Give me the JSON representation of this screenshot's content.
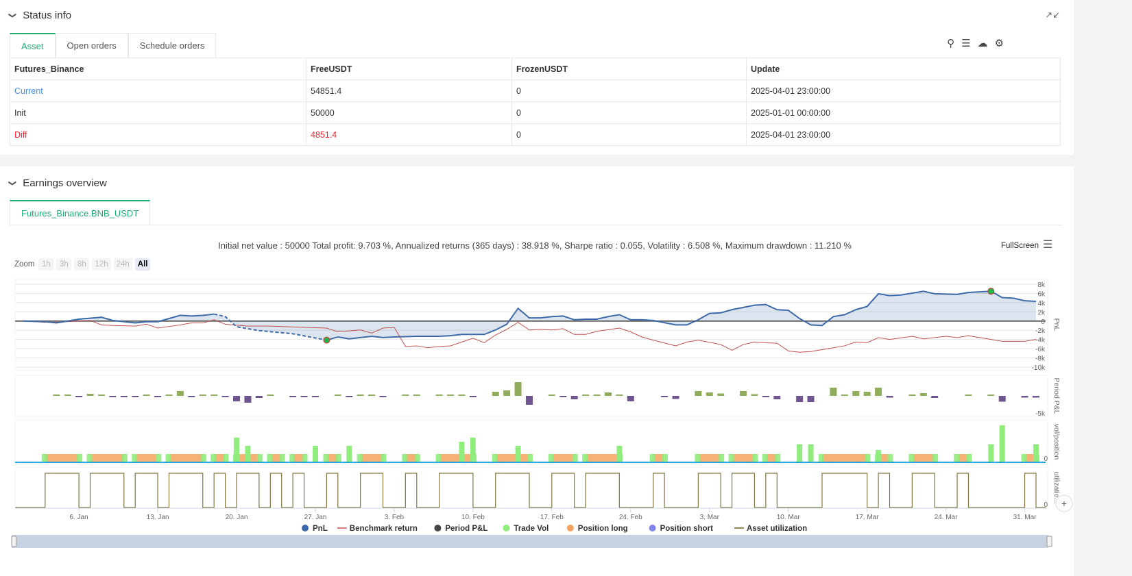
{
  "status": {
    "title": "Status info",
    "tabs": [
      "Asset",
      "Open orders",
      "Schedule orders"
    ],
    "columns": [
      "Futures_Binance",
      "FreeUSDT",
      "FrozenUSDT",
      "Update"
    ],
    "rows": [
      [
        "Current",
        "54851.4",
        "0",
        "2025-04-01 23:00:00"
      ],
      [
        "Init",
        "50000",
        "0",
        "2025-01-01 00:00:00"
      ],
      [
        "Diff",
        "4851.4",
        "0",
        "2025-04-01 23:00:00"
      ]
    ],
    "icons": [
      "search-icon",
      "list-icon",
      "cloud-download-icon",
      "gear-icon"
    ]
  },
  "earnings": {
    "title": "Earnings overview",
    "tab": "Futures_Binance.BNB_USDT",
    "summary": "Initial net value : 50000 Total profit: 9.703 %, Annualized returns (365 days) : 38.918 %, Sharpe ratio : 0.055, Volatility : 6.508 %, Maximum drawdown : 11.210 %",
    "fullscreen": "FullScreen",
    "zoom_label": "Zoom",
    "zoom_buttons": [
      "1h",
      "3h",
      "8h",
      "12h",
      "24h",
      "All"
    ],
    "zoom_selected": "All"
  },
  "colors": {
    "accent": "#1aae6f",
    "pnl": "#3d6aa8",
    "benchmark": "#c0504d",
    "profit": "#8fad5a",
    "loss": "#6f5590",
    "vol": "#90ed7d",
    "long": "#f7a35c",
    "short": "#8085e9",
    "util": "#6b5d1e",
    "diff": "#f5222d",
    "link": "#4a90e2"
  },
  "chart_data": {
    "type": "line",
    "x_range": [
      "2025-01-01",
      "2025-04-01"
    ],
    "x_ticks": [
      "6. Jan",
      "13. Jan",
      "20. Jan",
      "27. Jan",
      "3. Feb",
      "10. Feb",
      "17. Feb",
      "24. Feb",
      "3. Mar",
      "10. Mar",
      "17. Mar",
      "24. Mar",
      "31. Mar"
    ],
    "x_tick_dates": [
      "2025-01-06",
      "2025-01-13",
      "2025-01-20",
      "2025-01-27",
      "2025-02-03",
      "2025-02-10",
      "2025-02-17",
      "2025-02-24",
      "2025-03-03",
      "2025-03-10",
      "2025-03-17",
      "2025-03-24",
      "2025-03-31"
    ],
    "panes": [
      {
        "title": "PnL",
        "ylim": [
          -10000,
          8000
        ],
        "ticks": [
          8000,
          6000,
          4000,
          2000,
          0,
          -2000,
          -4000,
          -6000,
          -8000,
          -10000
        ],
        "tick_labels": [
          "8k",
          "6k",
          "4k",
          "2k",
          "0",
          "-2k",
          "-4k",
          "-6k",
          "-8k",
          "-10k"
        ]
      },
      {
        "title": "Period P&L",
        "tick_labels": [
          "-5k"
        ]
      },
      {
        "title": "vol/position",
        "tick_labels": [
          "0"
        ]
      },
      {
        "title": "utilizatio...",
        "tick_labels": [
          "0"
        ]
      }
    ],
    "pnl": [
      [
        "2025-01-01",
        0
      ],
      [
        "2025-01-03",
        -140
      ],
      [
        "2025-01-04",
        -410
      ],
      [
        "2025-01-05",
        0
      ],
      [
        "2025-01-06",
        410
      ],
      [
        "2025-01-08",
        830
      ],
      [
        "2025-01-09",
        140
      ],
      [
        "2025-01-11",
        -410
      ],
      [
        "2025-01-12",
        -140
      ],
      [
        "2025-01-13",
        -140
      ],
      [
        "2025-01-15",
        1240
      ],
      [
        "2025-01-16",
        1100
      ],
      [
        "2025-01-17",
        1240
      ],
      [
        "2025-01-18",
        1520
      ],
      [
        "2025-01-19",
        970
      ],
      [
        "2025-01-20",
        -1240
      ],
      [
        "2025-01-22",
        -2070
      ],
      [
        "2025-01-25",
        -2760
      ],
      [
        "2025-01-28",
        -4140
      ],
      [
        "2025-01-29",
        -3450
      ],
      [
        "2025-01-30",
        -3860
      ],
      [
        "2025-02-01",
        -3310
      ],
      [
        "2025-02-02",
        -3590
      ],
      [
        "2025-02-03",
        -3450
      ],
      [
        "2025-02-05",
        -3310
      ],
      [
        "2025-02-07",
        -3310
      ],
      [
        "2025-02-08",
        -3170
      ],
      [
        "2025-02-09",
        -2900
      ],
      [
        "2025-02-11",
        -2900
      ],
      [
        "2025-02-12",
        -1930
      ],
      [
        "2025-02-13",
        -690
      ],
      [
        "2025-02-14",
        2760
      ],
      [
        "2025-02-15",
        690
      ],
      [
        "2025-02-16",
        690
      ],
      [
        "2025-02-17",
        970
      ],
      [
        "2025-02-18",
        1100
      ],
      [
        "2025-02-19",
        280
      ],
      [
        "2025-02-20",
        410
      ],
      [
        "2025-02-21",
        410
      ],
      [
        "2025-02-22",
        970
      ],
      [
        "2025-02-23",
        1380
      ],
      [
        "2025-02-24",
        280
      ],
      [
        "2025-02-25",
        280
      ],
      [
        "2025-02-26",
        140
      ],
      [
        "2025-02-28",
        -830
      ],
      [
        "2025-03-01",
        -830
      ],
      [
        "2025-03-02",
        280
      ],
      [
        "2025-03-03",
        1660
      ],
      [
        "2025-03-04",
        1790
      ],
      [
        "2025-03-05",
        2480
      ],
      [
        "2025-03-07",
        3450
      ],
      [
        "2025-03-08",
        3590
      ],
      [
        "2025-03-09",
        2480
      ],
      [
        "2025-03-10",
        2340
      ],
      [
        "2025-03-11",
        550
      ],
      [
        "2025-03-12",
        -830
      ],
      [
        "2025-03-13",
        -970
      ],
      [
        "2025-03-14",
        970
      ],
      [
        "2025-03-15",
        1380
      ],
      [
        "2025-03-16",
        2480
      ],
      [
        "2025-03-17",
        3170
      ],
      [
        "2025-03-18",
        5930
      ],
      [
        "2025-03-19",
        5520
      ],
      [
        "2025-03-20",
        5660
      ],
      [
        "2025-03-22",
        6480
      ],
      [
        "2025-03-23",
        5930
      ],
      [
        "2025-03-25",
        5790
      ],
      [
        "2025-03-26",
        6210
      ],
      [
        "2025-03-28",
        6480
      ],
      [
        "2025-03-29",
        5100
      ],
      [
        "2025-03-30",
        4970
      ],
      [
        "2025-03-31",
        4410
      ],
      [
        "2025-04-01",
        4280
      ]
    ],
    "pnl_dashed_range": [
      "2025-01-18",
      "2025-01-28"
    ],
    "markers": [
      [
        "2025-01-28",
        -4140
      ],
      [
        "2025-03-28",
        6480
      ]
    ],
    "benchmark": [
      [
        "2025-01-01",
        0
      ],
      [
        "2025-01-03",
        -280
      ],
      [
        "2025-01-05",
        -140
      ],
      [
        "2025-01-07",
        140
      ],
      [
        "2025-01-08",
        -830
      ],
      [
        "2025-01-09",
        -970
      ],
      [
        "2025-01-11",
        -1100
      ],
      [
        "2025-01-12",
        -690
      ],
      [
        "2025-01-13",
        -1520
      ],
      [
        "2025-01-15",
        -830
      ],
      [
        "2025-01-16",
        -410
      ],
      [
        "2025-01-17",
        -410
      ],
      [
        "2025-01-18",
        280
      ],
      [
        "2025-01-19",
        -690
      ],
      [
        "2025-01-21",
        -1100
      ],
      [
        "2025-01-23",
        -1100
      ],
      [
        "2025-01-26",
        -1380
      ],
      [
        "2025-01-28",
        -1520
      ],
      [
        "2025-01-29",
        -2340
      ],
      [
        "2025-01-31",
        -1930
      ],
      [
        "2025-02-01",
        -2620
      ],
      [
        "2025-02-02",
        -1520
      ],
      [
        "2025-02-03",
        -1380
      ],
      [
        "2025-02-04",
        -5520
      ],
      [
        "2025-02-05",
        -5380
      ],
      [
        "2025-02-06",
        -5790
      ],
      [
        "2025-02-07",
        -5520
      ],
      [
        "2025-02-08",
        -5380
      ],
      [
        "2025-02-10",
        -3720
      ],
      [
        "2025-02-11",
        -4690
      ],
      [
        "2025-02-12",
        -3030
      ],
      [
        "2025-02-13",
        -1790
      ],
      [
        "2025-02-14",
        -280
      ],
      [
        "2025-02-15",
        -1930
      ],
      [
        "2025-02-16",
        -1790
      ],
      [
        "2025-02-17",
        -1930
      ],
      [
        "2025-02-18",
        -1660
      ],
      [
        "2025-02-19",
        -2900
      ],
      [
        "2025-02-20",
        -2900
      ],
      [
        "2025-02-21",
        -2210
      ],
      [
        "2025-02-23",
        -1520
      ],
      [
        "2025-02-24",
        -2340
      ],
      [
        "2025-02-25",
        -3450
      ],
      [
        "2025-02-26",
        -4140
      ],
      [
        "2025-02-28",
        -5380
      ],
      [
        "2025-03-01",
        -4550
      ],
      [
        "2025-03-02",
        -4140
      ],
      [
        "2025-03-04",
        -5100
      ],
      [
        "2025-03-05",
        -6340
      ],
      [
        "2025-03-06",
        -5100
      ],
      [
        "2025-03-07",
        -4550
      ],
      [
        "2025-03-09",
        -4830
      ],
      [
        "2025-03-10",
        -6480
      ],
      [
        "2025-03-11",
        -6760
      ],
      [
        "2025-03-12",
        -6620
      ],
      [
        "2025-03-14",
        -5790
      ],
      [
        "2025-03-15",
        -5380
      ],
      [
        "2025-03-16",
        -4550
      ],
      [
        "2025-03-17",
        -4690
      ],
      [
        "2025-03-18",
        -3590
      ],
      [
        "2025-03-19",
        -4000
      ],
      [
        "2025-03-21",
        -3310
      ],
      [
        "2025-03-22",
        -3860
      ],
      [
        "2025-03-24",
        -3310
      ],
      [
        "2025-03-25",
        -3590
      ],
      [
        "2025-03-26",
        -3170
      ],
      [
        "2025-03-28",
        -4000
      ],
      [
        "2025-03-29",
        -4410
      ],
      [
        "2025-03-31",
        -4410
      ],
      [
        "2025-04-01",
        -4000
      ]
    ],
    "period_pnl": [
      [
        "2025-01-04",
        200
      ],
      [
        "2025-01-05",
        200
      ],
      [
        "2025-01-06",
        -100
      ],
      [
        "2025-01-07",
        600
      ],
      [
        "2025-01-08",
        200
      ],
      [
        "2025-01-09",
        -100
      ],
      [
        "2025-01-10",
        -100
      ],
      [
        "2025-01-11",
        -100
      ],
      [
        "2025-01-12",
        400
      ],
      [
        "2025-01-13",
        -100
      ],
      [
        "2025-01-14",
        200
      ],
      [
        "2025-01-15",
        1400
      ],
      [
        "2025-01-16",
        -100
      ],
      [
        "2025-01-17",
        100
      ],
      [
        "2025-01-18",
        400
      ],
      [
        "2025-01-19",
        -100
      ],
      [
        "2025-01-20",
        -1600
      ],
      [
        "2025-01-21",
        -2000
      ],
      [
        "2025-01-22",
        -600
      ],
      [
        "2025-01-23",
        200
      ],
      [
        "2025-01-25",
        -100
      ],
      [
        "2025-01-26",
        -100
      ],
      [
        "2025-01-27",
        -100
      ],
      [
        "2025-01-29",
        400
      ],
      [
        "2025-01-30",
        -400
      ],
      [
        "2025-01-31",
        400
      ],
      [
        "2025-02-01",
        200
      ],
      [
        "2025-02-02",
        -100
      ],
      [
        "2025-02-04",
        200
      ],
      [
        "2025-02-05",
        100
      ],
      [
        "2025-02-07",
        100
      ],
      [
        "2025-02-08",
        100
      ],
      [
        "2025-02-09",
        400
      ],
      [
        "2025-02-10",
        -100
      ],
      [
        "2025-02-12",
        1200
      ],
      [
        "2025-02-13",
        1600
      ],
      [
        "2025-02-14",
        4000
      ],
      [
        "2025-02-15",
        -2600
      ],
      [
        "2025-02-17",
        400
      ],
      [
        "2025-02-18",
        -200
      ],
      [
        "2025-02-19",
        -1000
      ],
      [
        "2025-02-20",
        200
      ],
      [
        "2025-02-21",
        300
      ],
      [
        "2025-02-22",
        1000
      ],
      [
        "2025-02-23",
        400
      ],
      [
        "2025-02-24",
        -1600
      ],
      [
        "2025-02-27",
        -100
      ],
      [
        "2025-02-28",
        -900
      ],
      [
        "2025-03-02",
        1400
      ],
      [
        "2025-03-03",
        1000
      ],
      [
        "2025-03-04",
        700
      ],
      [
        "2025-03-06",
        1400
      ],
      [
        "2025-03-07",
        500
      ],
      [
        "2025-03-08",
        -100
      ],
      [
        "2025-03-09",
        -1000
      ],
      [
        "2025-03-11",
        -1800
      ],
      [
        "2025-03-12",
        -1800
      ],
      [
        "2025-03-14",
        2400
      ],
      [
        "2025-03-15",
        400
      ],
      [
        "2025-03-16",
        1400
      ],
      [
        "2025-03-17",
        1200
      ],
      [
        "2025-03-18",
        2400
      ],
      [
        "2025-03-19",
        -500
      ],
      [
        "2025-03-21",
        100
      ],
      [
        "2025-03-22",
        800
      ],
      [
        "2025-03-23",
        -600
      ],
      [
        "2025-03-26",
        400
      ],
      [
        "2025-03-28",
        400
      ],
      [
        "2025-03-29",
        -1700
      ],
      [
        "2025-03-31",
        -500
      ],
      [
        "2025-04-01",
        -500
      ]
    ],
    "position_long": [
      [
        "2025-01-03",
        "2025-01-06"
      ],
      [
        "2025-01-07",
        "2025-01-10"
      ],
      [
        "2025-01-11",
        "2025-01-13"
      ],
      [
        "2025-01-14",
        "2025-01-17"
      ],
      [
        "2025-01-18",
        "2025-01-19"
      ],
      [
        "2025-01-20",
        "2025-01-22"
      ],
      [
        "2025-01-23",
        "2025-01-24"
      ],
      [
        "2025-01-25",
        "2025-01-26"
      ],
      [
        "2025-01-28",
        "2025-01-29"
      ],
      [
        "2025-01-31",
        "2025-02-02"
      ],
      [
        "2025-02-04",
        "2025-02-05"
      ],
      [
        "2025-02-07",
        "2025-02-10"
      ],
      [
        "2025-02-12",
        "2025-02-15"
      ],
      [
        "2025-02-17",
        "2025-02-19"
      ],
      [
        "2025-02-20",
        "2025-02-23"
      ],
      [
        "2025-02-26",
        "2025-02-27"
      ],
      [
        "2025-03-02",
        "2025-03-04"
      ],
      [
        "2025-03-05",
        "2025-03-07"
      ],
      [
        "2025-03-08",
        "2025-03-09"
      ],
      [
        "2025-03-13",
        "2025-03-17"
      ],
      [
        "2025-03-18",
        "2025-03-19"
      ],
      [
        "2025-03-21",
        "2025-03-23"
      ],
      [
        "2025-03-25",
        "2025-03-26"
      ],
      [
        "2025-03-31",
        "2025-04-01"
      ]
    ],
    "trade_vol_peaks": [
      [
        "2025-01-20",
        3
      ],
      [
        "2025-01-21",
        2
      ],
      [
        "2025-01-27",
        2
      ],
      [
        "2025-01-30",
        2
      ],
      [
        "2025-02-09",
        2.5
      ],
      [
        "2025-02-10",
        3
      ],
      [
        "2025-02-14",
        2
      ],
      [
        "2025-02-23",
        2
      ],
      [
        "2025-03-11",
        2.2
      ],
      [
        "2025-03-12",
        2.2
      ],
      [
        "2025-03-18",
        1.5
      ],
      [
        "2025-03-28",
        2.2
      ],
      [
        "2025-03-29",
        4.5
      ],
      [
        "2025-04-01",
        2.2
      ]
    ],
    "legend": [
      {
        "name": "PnL",
        "symbol": "circle",
        "color": "#3d6aa8"
      },
      {
        "name": "Benchmark return",
        "symbol": "line",
        "color": "#c0504d"
      },
      {
        "name": "Period P&L",
        "symbol": "circle",
        "color": "#444444"
      },
      {
        "name": "Trade Vol",
        "symbol": "circle",
        "color": "#90ed7d"
      },
      {
        "name": "Position long",
        "symbol": "circle",
        "color": "#f7a35c"
      },
      {
        "name": "Position short",
        "symbol": "circle",
        "color": "#8085e9"
      },
      {
        "name": "Asset utilization",
        "symbol": "line",
        "color": "#6b5d1e"
      }
    ],
    "grid": true,
    "legend_position": "bottom"
  }
}
